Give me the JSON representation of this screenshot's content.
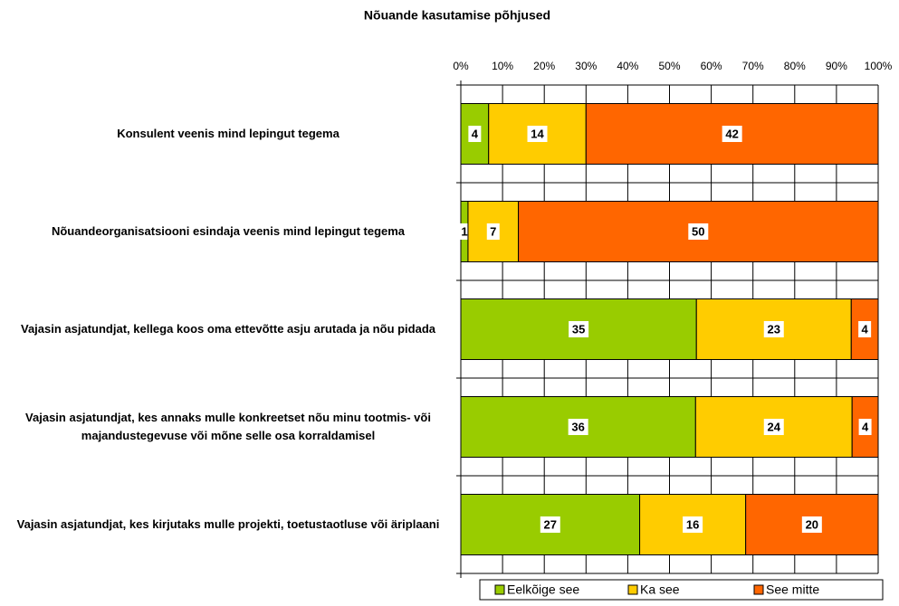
{
  "chart_data": {
    "type": "bar",
    "orientation": "horizontal",
    "stacked_percent": true,
    "title": "Nõuande kasutamise põhjused",
    "categories": [
      "Konsulent veenis mind lepingut tegema",
      "Nõuandeorganisatsiooni esindaja veenis mind lepingut tegema",
      "Vajasin asjatundjat, kellega koos oma ettevõtte asju arutada ja nõu pidada",
      "Vajasin asjatundjat, kes annaks mulle konkreetset nõu minu tootmis- või majandustegevuse või mõne selle osa korraldamisel",
      "Vajasin asjatundjat, kes kirjutaks mulle projekti, toetustaotluse või äriplaani"
    ],
    "series": [
      {
        "name": "Eelkõige see",
        "color": "#99cc00",
        "values": [
          4,
          1,
          35,
          36,
          27
        ]
      },
      {
        "name": "Ka see",
        "color": "#ffcc00",
        "values": [
          14,
          7,
          23,
          24,
          16
        ]
      },
      {
        "name": "See mitte",
        "color": "#ff6600",
        "values": [
          42,
          50,
          4,
          4,
          20
        ]
      }
    ],
    "xlim": [
      0,
      100
    ],
    "xticks": [
      {
        "value": 0,
        "label": "0%"
      },
      {
        "value": 10,
        "label": "10%"
      },
      {
        "value": 20,
        "label": "20%"
      },
      {
        "value": 30,
        "label": "30%"
      },
      {
        "value": 40,
        "label": "40%"
      },
      {
        "value": 50,
        "label": "50%"
      },
      {
        "value": 60,
        "label": "60%"
      },
      {
        "value": 70,
        "label": "70%"
      },
      {
        "value": 80,
        "label": "80%"
      },
      {
        "value": 90,
        "label": "90%"
      },
      {
        "value": 100,
        "label": "100%"
      }
    ],
    "grid": true,
    "legend": "bottom"
  }
}
